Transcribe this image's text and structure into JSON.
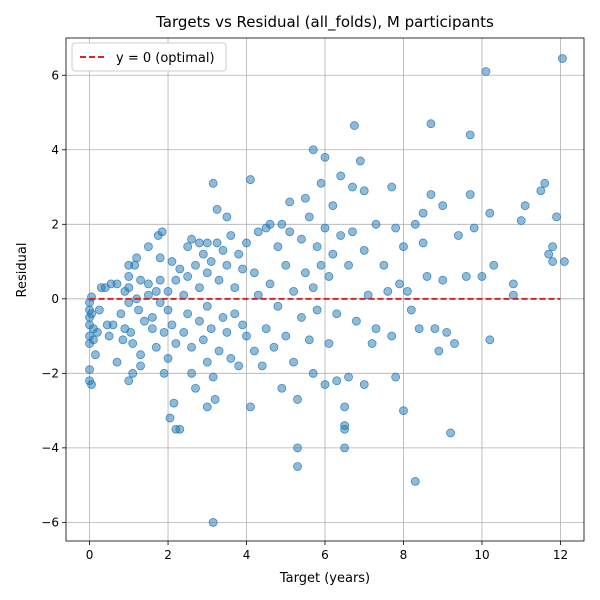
{
  "chart_data": {
    "type": "scatter",
    "title": "Targets vs Residual (all_folds), M participants",
    "xlabel": "Target (years)",
    "ylabel": "Residual",
    "xlim": [
      -0.6,
      12.6
    ],
    "ylim": [
      -6.5,
      7.0
    ],
    "xticks": [
      0,
      2,
      4,
      6,
      8,
      10,
      12
    ],
    "yticks": [
      -6,
      -4,
      -2,
      0,
      2,
      4,
      6
    ],
    "xtick_labels": [
      "0",
      "2",
      "4",
      "6",
      "8",
      "10",
      "12"
    ],
    "ytick_labels": [
      "−6",
      "−4",
      "−2",
      "0",
      "2",
      "4",
      "6"
    ],
    "grid": true,
    "legend": {
      "location": "upper-left",
      "entries": [
        "y = 0 (optimal)"
      ]
    },
    "reference_line": {
      "name": "y = 0 (optimal)",
      "y": 0,
      "x_range": [
        0,
        12
      ],
      "style": "dashed",
      "color": "#d62728"
    },
    "marker_color": "#1f77b4",
    "series": [
      {
        "points": [
          [
            0.0,
            -0.1
          ],
          [
            0.0,
            -0.3
          ],
          [
            0.0,
            -0.5
          ],
          [
            0.0,
            -0.7
          ],
          [
            0.0,
            -1.0
          ],
          [
            0.0,
            -1.2
          ],
          [
            0.0,
            -1.9
          ],
          [
            0.0,
            -2.2
          ],
          [
            0.05,
            -2.3
          ],
          [
            0.05,
            0.05
          ],
          [
            0.05,
            -0.4
          ],
          [
            0.1,
            -0.8
          ],
          [
            0.1,
            -1.1
          ],
          [
            0.15,
            -1.5
          ],
          [
            0.2,
            -0.9
          ],
          [
            0.25,
            -0.3
          ],
          [
            0.3,
            0.3
          ],
          [
            0.4,
            0.3
          ],
          [
            0.45,
            -0.7
          ],
          [
            0.5,
            -1.0
          ],
          [
            0.55,
            0.4
          ],
          [
            0.6,
            -0.7
          ],
          [
            0.7,
            0.4
          ],
          [
            0.7,
            -1.7
          ],
          [
            0.8,
            -0.4
          ],
          [
            0.85,
            -1.1
          ],
          [
            0.9,
            -0.8
          ],
          [
            0.9,
            0.2
          ],
          [
            1.0,
            0.9
          ],
          [
            1.0,
            0.6
          ],
          [
            1.0,
            0.3
          ],
          [
            1.0,
            -0.1
          ],
          [
            1.0,
            -2.2
          ],
          [
            1.05,
            -0.9
          ],
          [
            1.1,
            -1.2
          ],
          [
            1.1,
            -2.0
          ],
          [
            1.15,
            0.9
          ],
          [
            1.2,
            1.1
          ],
          [
            1.2,
            0.0
          ],
          [
            1.25,
            -0.3
          ],
          [
            1.3,
            0.5
          ],
          [
            1.3,
            -1.5
          ],
          [
            1.3,
            -1.8
          ],
          [
            1.4,
            -0.6
          ],
          [
            1.5,
            1.4
          ],
          [
            1.5,
            0.4
          ],
          [
            1.5,
            0.1
          ],
          [
            1.6,
            -0.5
          ],
          [
            1.6,
            -0.8
          ],
          [
            1.7,
            0.2
          ],
          [
            1.7,
            -1.3
          ],
          [
            1.75,
            1.7
          ],
          [
            1.8,
            0.5
          ],
          [
            1.8,
            -0.1
          ],
          [
            1.8,
            1.1
          ],
          [
            1.85,
            1.8
          ],
          [
            1.9,
            -0.9
          ],
          [
            1.9,
            -2.0
          ],
          [
            2.0,
            0.2
          ],
          [
            2.0,
            -0.3
          ],
          [
            2.0,
            -1.6
          ],
          [
            2.05,
            -3.2
          ],
          [
            2.1,
            1.0
          ],
          [
            2.1,
            -0.7
          ],
          [
            2.15,
            -2.8
          ],
          [
            2.2,
            0.5
          ],
          [
            2.2,
            -1.2
          ],
          [
            2.2,
            -3.5
          ],
          [
            2.3,
            0.8
          ],
          [
            2.3,
            -3.5
          ],
          [
            2.4,
            0.1
          ],
          [
            2.4,
            -0.9
          ],
          [
            2.5,
            1.4
          ],
          [
            2.5,
            0.6
          ],
          [
            2.5,
            -0.4
          ],
          [
            2.6,
            1.6
          ],
          [
            2.6,
            -1.3
          ],
          [
            2.6,
            -2.0
          ],
          [
            2.7,
            -2.4
          ],
          [
            2.7,
            0.9
          ],
          [
            2.8,
            1.5
          ],
          [
            2.8,
            0.3
          ],
          [
            2.8,
            -0.6
          ],
          [
            2.9,
            1.2
          ],
          [
            2.9,
            -1.1
          ],
          [
            3.0,
            1.5
          ],
          [
            3.0,
            0.7
          ],
          [
            3.0,
            -0.2
          ],
          [
            3.0,
            -1.7
          ],
          [
            3.0,
            -2.9
          ],
          [
            3.1,
            1.0
          ],
          [
            3.1,
            -0.8
          ],
          [
            3.15,
            -2.1
          ],
          [
            3.15,
            3.1
          ],
          [
            3.15,
            -6.0
          ],
          [
            3.2,
            -2.7
          ],
          [
            3.25,
            1.5
          ],
          [
            3.25,
            2.4
          ],
          [
            3.3,
            0.5
          ],
          [
            3.3,
            -1.4
          ],
          [
            3.4,
            1.3
          ],
          [
            3.4,
            -0.5
          ],
          [
            3.5,
            2.2
          ],
          [
            3.5,
            0.9
          ],
          [
            3.5,
            -0.9
          ],
          [
            3.6,
            1.7
          ],
          [
            3.6,
            -1.6
          ],
          [
            3.7,
            0.3
          ],
          [
            3.7,
            -0.4
          ],
          [
            3.8,
            1.2
          ],
          [
            3.8,
            -1.8
          ],
          [
            3.9,
            0.8
          ],
          [
            3.9,
            -0.7
          ],
          [
            4.0,
            1.5
          ],
          [
            4.0,
            -1.0
          ],
          [
            4.1,
            3.2
          ],
          [
            4.1,
            -2.9
          ],
          [
            4.2,
            0.7
          ],
          [
            4.2,
            -1.4
          ],
          [
            4.3,
            1.8
          ],
          [
            4.3,
            0.1
          ],
          [
            4.4,
            -1.8
          ],
          [
            4.5,
            1.9
          ],
          [
            4.5,
            -0.8
          ],
          [
            4.6,
            2.0
          ],
          [
            4.6,
            0.4
          ],
          [
            4.7,
            -1.3
          ],
          [
            4.8,
            1.4
          ],
          [
            4.8,
            -0.2
          ],
          [
            4.9,
            2.0
          ],
          [
            4.9,
            -2.4
          ],
          [
            5.0,
            0.9
          ],
          [
            5.0,
            -1.0
          ],
          [
            5.1,
            1.8
          ],
          [
            5.1,
            2.6
          ],
          [
            5.2,
            0.2
          ],
          [
            5.2,
            -1.7
          ],
          [
            5.3,
            -4.0
          ],
          [
            5.3,
            -4.5
          ],
          [
            5.3,
            -2.7
          ],
          [
            5.4,
            1.6
          ],
          [
            5.4,
            -0.5
          ],
          [
            5.5,
            2.7
          ],
          [
            5.5,
            0.7
          ],
          [
            5.6,
            -1.1
          ],
          [
            5.6,
            2.2
          ],
          [
            5.7,
            4.0
          ],
          [
            5.7,
            0.3
          ],
          [
            5.7,
            -2.0
          ],
          [
            5.8,
            1.4
          ],
          [
            5.8,
            -0.3
          ],
          [
            5.9,
            3.1
          ],
          [
            5.9,
            0.9
          ],
          [
            6.0,
            3.8
          ],
          [
            6.0,
            1.9
          ],
          [
            6.0,
            -2.3
          ],
          [
            6.1,
            0.6
          ],
          [
            6.1,
            -1.2
          ],
          [
            6.2,
            2.5
          ],
          [
            6.2,
            1.2
          ],
          [
            6.3,
            -0.4
          ],
          [
            6.3,
            -2.2
          ],
          [
            6.4,
            3.3
          ],
          [
            6.4,
            1.7
          ],
          [
            6.5,
            -2.9
          ],
          [
            6.5,
            -3.5
          ],
          [
            6.5,
            -4.0
          ],
          [
            6.5,
            -3.4
          ],
          [
            6.6,
            0.9
          ],
          [
            6.6,
            -2.1
          ],
          [
            6.7,
            3.0
          ],
          [
            6.7,
            1.8
          ],
          [
            6.75,
            4.65
          ],
          [
            6.8,
            -0.6
          ],
          [
            6.9,
            3.7
          ],
          [
            7.0,
            2.9
          ],
          [
            7.0,
            1.3
          ],
          [
            7.0,
            -2.3
          ],
          [
            7.1,
            0.1
          ],
          [
            7.2,
            -1.2
          ],
          [
            7.3,
            2.0
          ],
          [
            7.3,
            -0.8
          ],
          [
            7.5,
            0.9
          ],
          [
            7.6,
            0.2
          ],
          [
            7.7,
            3.0
          ],
          [
            7.7,
            -1.0
          ],
          [
            7.8,
            -2.1
          ],
          [
            7.8,
            1.9
          ],
          [
            7.9,
            0.4
          ],
          [
            8.0,
            -3.0
          ],
          [
            8.0,
            1.4
          ],
          [
            8.1,
            0.2
          ],
          [
            8.2,
            -0.3
          ],
          [
            8.3,
            -4.9
          ],
          [
            8.3,
            2.0
          ],
          [
            8.4,
            -0.8
          ],
          [
            8.5,
            1.5
          ],
          [
            8.5,
            2.3
          ],
          [
            8.6,
            0.6
          ],
          [
            8.7,
            2.8
          ],
          [
            8.7,
            4.7
          ],
          [
            8.8,
            -0.8
          ],
          [
            8.9,
            -1.4
          ],
          [
            9.0,
            0.5
          ],
          [
            9.0,
            2.5
          ],
          [
            9.1,
            -0.9
          ],
          [
            9.2,
            -3.6
          ],
          [
            9.3,
            -1.2
          ],
          [
            9.4,
            1.7
          ],
          [
            9.6,
            0.6
          ],
          [
            9.7,
            4.4
          ],
          [
            9.7,
            2.8
          ],
          [
            9.8,
            1.9
          ],
          [
            10.0,
            0.6
          ],
          [
            10.1,
            6.1
          ],
          [
            10.2,
            -1.1
          ],
          [
            10.2,
            2.3
          ],
          [
            10.3,
            0.9
          ],
          [
            10.8,
            0.4
          ],
          [
            10.8,
            0.1
          ],
          [
            11.0,
            2.1
          ],
          [
            11.1,
            2.5
          ],
          [
            11.5,
            2.9
          ],
          [
            11.6,
            3.1
          ],
          [
            11.7,
            1.2
          ],
          [
            11.8,
            1.4
          ],
          [
            11.8,
            1.0
          ],
          [
            11.9,
            2.2
          ],
          [
            12.05,
            6.45
          ],
          [
            12.1,
            1.0
          ]
        ]
      }
    ]
  }
}
